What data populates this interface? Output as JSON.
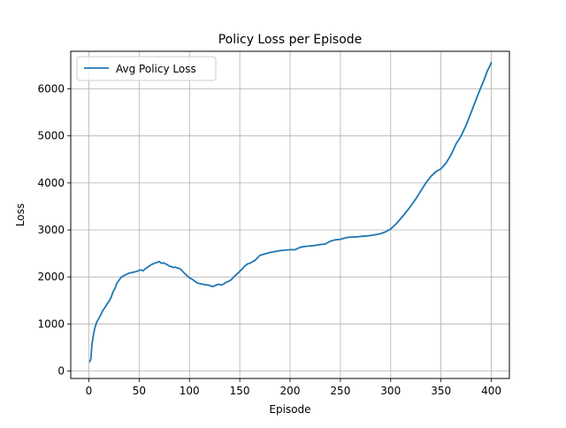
{
  "chart_data": {
    "type": "line",
    "title": "Policy Loss per Episode",
    "xlabel": "Episode",
    "ylabel": "Loss",
    "xlim": [
      -18,
      418
    ],
    "ylim": [
      -160,
      6800
    ],
    "xticks": [
      0,
      50,
      100,
      150,
      200,
      250,
      300,
      350,
      400
    ],
    "yticks": [
      0,
      1000,
      2000,
      3000,
      4000,
      5000,
      6000
    ],
    "grid": true,
    "legend": {
      "position": "upper-left"
    },
    "series": [
      {
        "name": "Avg Policy Loss",
        "color": "#1f77b4",
        "x": [
          1,
          2,
          3,
          4,
          5,
          6,
          8,
          10,
          12,
          14,
          16,
          18,
          20,
          22,
          24,
          26,
          28,
          30,
          32,
          34,
          36,
          38,
          40,
          42,
          44,
          46,
          48,
          50,
          52,
          54,
          56,
          58,
          60,
          62,
          64,
          66,
          68,
          70,
          72,
          74,
          76,
          78,
          80,
          82,
          84,
          86,
          88,
          90,
          92,
          94,
          96,
          98,
          100,
          102,
          104,
          106,
          108,
          110,
          112,
          114,
          116,
          118,
          120,
          122,
          124,
          126,
          128,
          130,
          132,
          134,
          136,
          138,
          140,
          142,
          144,
          146,
          148,
          150,
          152,
          154,
          156,
          158,
          160,
          165,
          170,
          175,
          180,
          185,
          190,
          195,
          200,
          205,
          210,
          215,
          220,
          225,
          230,
          235,
          240,
          245,
          250,
          255,
          260,
          265,
          270,
          275,
          280,
          285,
          290,
          295,
          300,
          305,
          310,
          315,
          320,
          325,
          330,
          335,
          340,
          345,
          350,
          355,
          360,
          365,
          370,
          375,
          380,
          385,
          390,
          393,
          396,
          398,
          400
        ],
        "y": [
          200,
          260,
          550,
          700,
          820,
          920,
          1050,
          1120,
          1200,
          1290,
          1350,
          1420,
          1480,
          1560,
          1680,
          1760,
          1870,
          1930,
          1990,
          2020,
          2040,
          2060,
          2080,
          2090,
          2100,
          2110,
          2120,
          2140,
          2150,
          2130,
          2170,
          2200,
          2230,
          2260,
          2280,
          2300,
          2310,
          2330,
          2290,
          2300,
          2280,
          2260,
          2230,
          2220,
          2200,
          2210,
          2190,
          2180,
          2150,
          2100,
          2060,
          2020,
          1980,
          1960,
          1930,
          1900,
          1870,
          1860,
          1850,
          1840,
          1830,
          1830,
          1820,
          1800,
          1800,
          1820,
          1840,
          1840,
          1830,
          1850,
          1880,
          1900,
          1920,
          1950,
          2000,
          2040,
          2080,
          2120,
          2160,
          2210,
          2250,
          2280,
          2290,
          2350,
          2460,
          2490,
          2520,
          2540,
          2560,
          2570,
          2580,
          2580,
          2630,
          2650,
          2660,
          2670,
          2690,
          2700,
          2760,
          2790,
          2800,
          2830,
          2850,
          2850,
          2860,
          2870,
          2880,
          2900,
          2920,
          2960,
          3020,
          3120,
          3240,
          3370,
          3510,
          3660,
          3830,
          4000,
          4140,
          4240,
          4300,
          4420,
          4600,
          4830,
          5000,
          5230,
          5500,
          5780,
          6050,
          6200,
          6380,
          6460,
          6560
        ]
      }
    ]
  }
}
